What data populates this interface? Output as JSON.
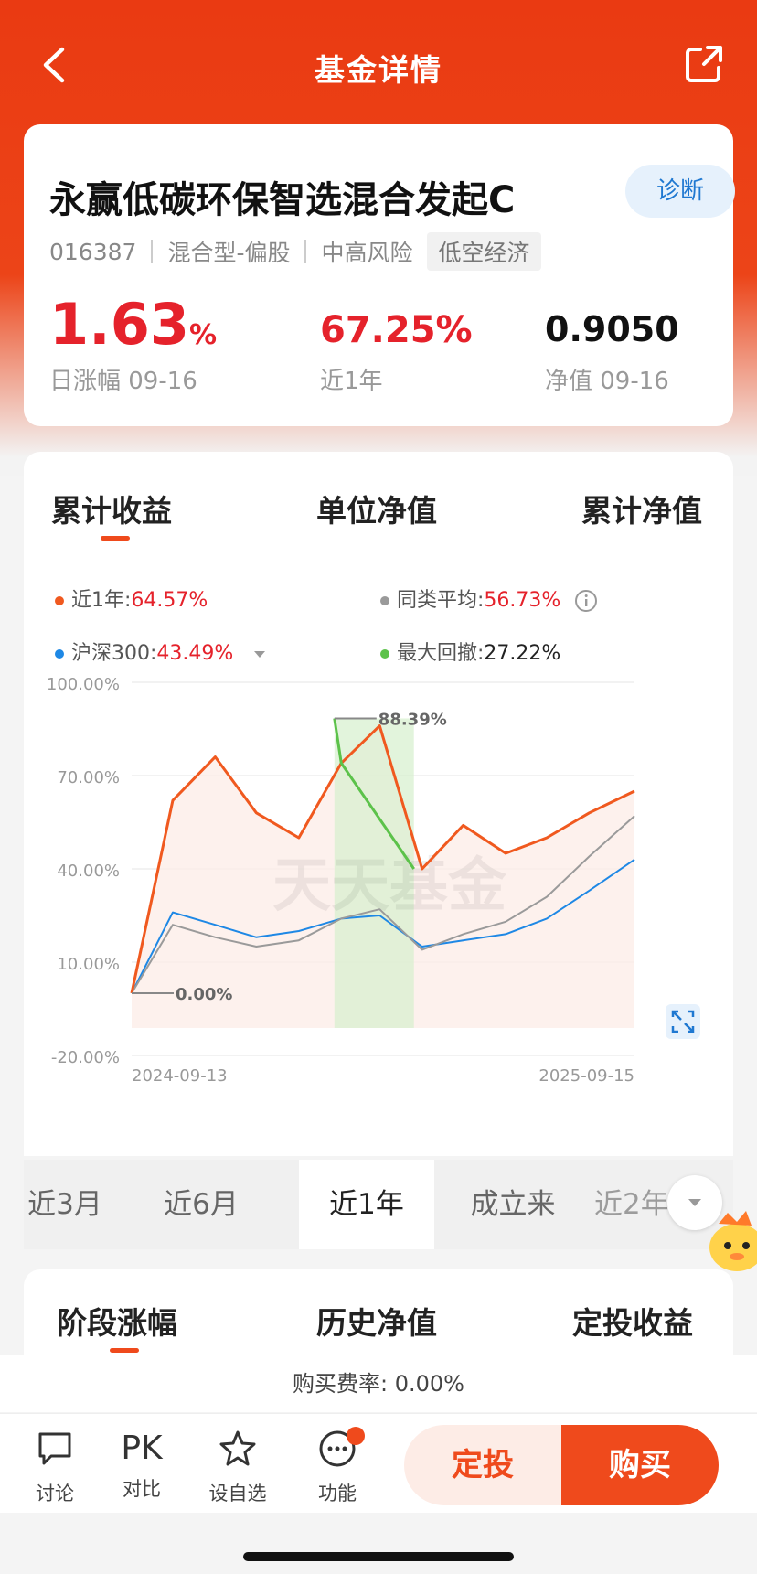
{
  "header": {
    "title": "基金详情"
  },
  "fund": {
    "name": "永赢低碳环保智选混合发起C",
    "code": "016387",
    "type": "混合型-偏股",
    "risk": "中高风险",
    "tag": "低空经济",
    "diagnose": "诊断"
  },
  "stats": {
    "daily_value": "1.63",
    "daily_unit": "%",
    "daily_label": "日涨幅 09-16",
    "year_value": "67.25%",
    "year_label": "近1年",
    "nav_value": "0.9050",
    "nav_label": "净值 09-16"
  },
  "chart_tabs": [
    "累计收益",
    "单位净值",
    "累计净值"
  ],
  "legend": {
    "fund": {
      "label": "近1年:",
      "value": "64.57%",
      "color": "#f0591f"
    },
    "peer": {
      "label": "同类平均:",
      "value": "56.73%",
      "color": "#9a9a9a"
    },
    "index": {
      "label": "沪深300:",
      "value": "43.49%",
      "color": "#1e88e5"
    },
    "drawdown": {
      "label": "最大回撤:",
      "value": "27.22%",
      "color": "#5cc24a"
    }
  },
  "chart_data": {
    "type": "line",
    "x": [
      "2024-09-13",
      "2024-10-13",
      "2024-11-13",
      "2024-12-13",
      "2025-01-13",
      "2025-02-13",
      "2025-03-13",
      "2025-04-13",
      "2025-05-13",
      "2025-06-13",
      "2025-07-13",
      "2025-08-13",
      "2025-09-15"
    ],
    "x_tick_labels": [
      "2024-09-13",
      "2025-09-15"
    ],
    "y_tick_labels": [
      "100.00%",
      "70.00%",
      "40.00%",
      "10.00%",
      "-20.00%"
    ],
    "ylim": [
      -20,
      100
    ],
    "series": [
      {
        "name": "近1年",
        "color": "#f0591f",
        "values": [
          0,
          62,
          76,
          58,
          50,
          74,
          86,
          40,
          54,
          45,
          50,
          58,
          65
        ]
      },
      {
        "name": "同类平均",
        "color": "#9a9a9a",
        "values": [
          0,
          22,
          18,
          15,
          17,
          24,
          27,
          14,
          19,
          23,
          31,
          44,
          57
        ]
      },
      {
        "name": "沪深300",
        "color": "#1e88e5",
        "values": [
          0,
          26,
          22,
          18,
          20,
          24,
          25,
          15,
          17,
          19,
          24,
          33,
          43
        ]
      }
    ],
    "annotations": [
      {
        "text": "88.39%",
        "x": "2025-02-08",
        "y": 88.39
      },
      {
        "text": "0.00%",
        "x": "2024-09-13",
        "y": 0
      }
    ],
    "max_drawdown_range": [
      "2025-02-08",
      "2025-04-07"
    ]
  },
  "watermark": "天天基金",
  "period_tabs": [
    "近3月",
    "近6月",
    "近1年",
    "成立来",
    "近2年"
  ],
  "period_active": 2,
  "section_tabs": [
    "阶段涨幅",
    "历史净值",
    "定投收益"
  ],
  "fee": "购买费率: 0.00%",
  "bottom": {
    "discuss": "讨论",
    "pk_icon": "PK",
    "compare": "对比",
    "watch": "设自选",
    "func": "功能",
    "dingtou": "定投",
    "buy": "购买"
  }
}
